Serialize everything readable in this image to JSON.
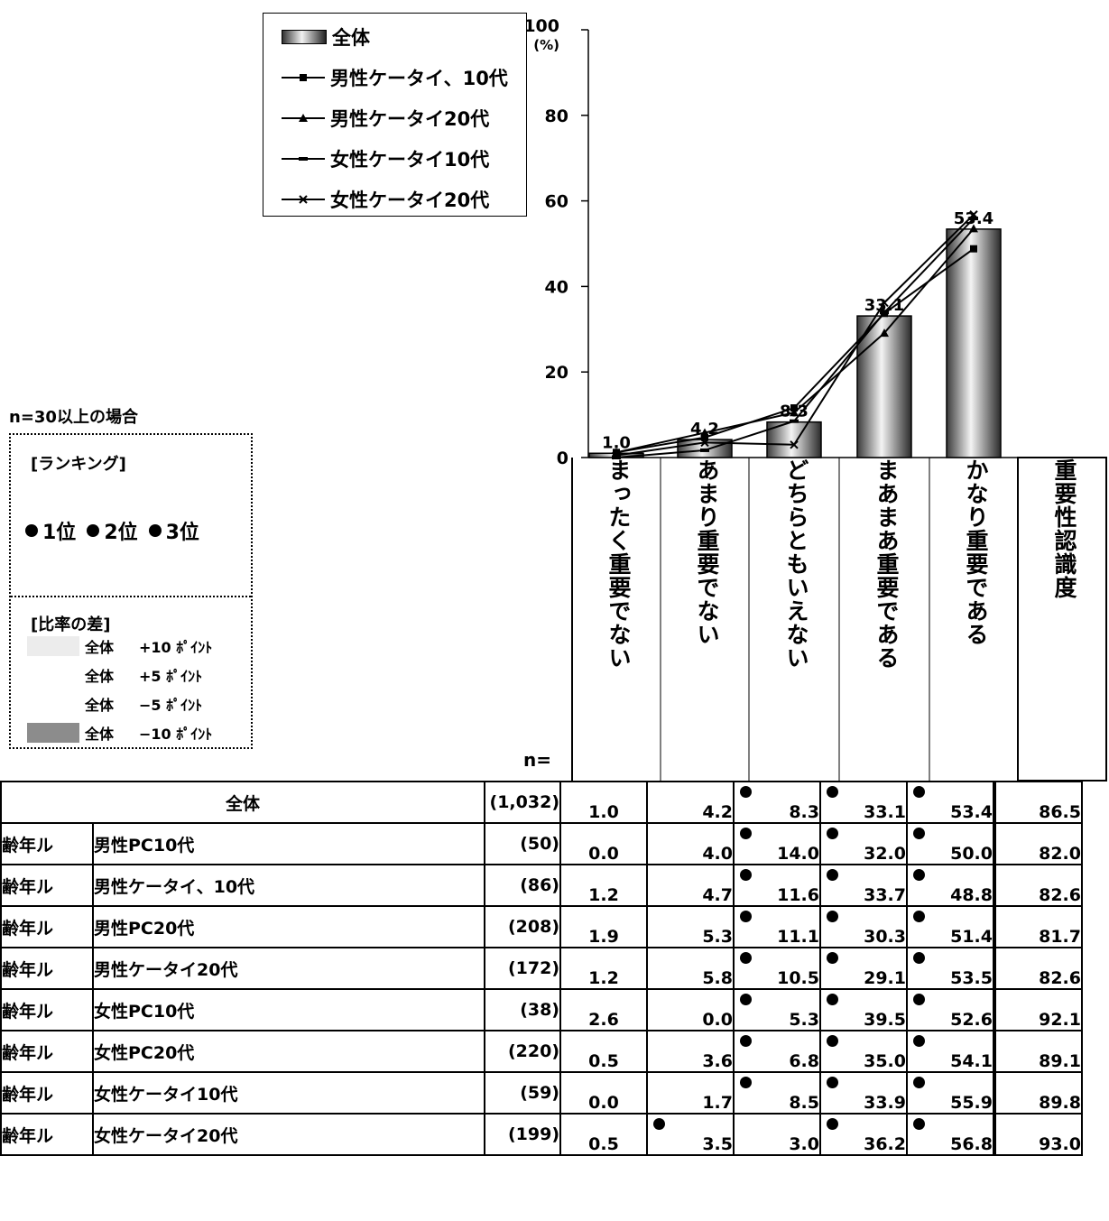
{
  "chart_data": {
    "type": "bar",
    "categories": [
      "まったく重要でない",
      "あまり重要でない",
      "どちらともいえない",
      "まあまあ重要である",
      "かなり重要である"
    ],
    "y_axis": {
      "max_label": "100",
      "unit_label": "(%)",
      "ticks": [
        "0",
        "20",
        "40",
        "60",
        "80",
        "100"
      ],
      "ylim": [
        0,
        100
      ]
    },
    "bar_series": {
      "name": "全体",
      "values": [
        1.0,
        4.2,
        8.3,
        33.1,
        53.4
      ],
      "labels": [
        "1.0",
        "4.2",
        "8.3",
        "33.1",
        "53.4"
      ]
    },
    "line_series": [
      {
        "name": "男性ケータイ、10代",
        "values": [
          1.2,
          4.7,
          11.6,
          33.7,
          48.8
        ],
        "marker": "square"
      },
      {
        "name": "男性ケータイ20代",
        "values": [
          1.2,
          5.8,
          10.5,
          29.1,
          53.5
        ],
        "marker": "triangle"
      },
      {
        "name": "女性ケータイ10代",
        "values": [
          0.0,
          1.7,
          8.5,
          33.9,
          55.9
        ],
        "marker": "dash"
      },
      {
        "name": "女性ケータイ20代",
        "values": [
          0.5,
          3.5,
          3.0,
          36.2,
          56.8
        ],
        "marker": "x"
      }
    ],
    "legend": [
      "全体",
      "男性ケータイ、10代",
      "男性ケータイ20代",
      "女性ケータイ10代",
      "女性ケータイ20代"
    ],
    "legend_placement": "top",
    "importance_header": "重要性認識度"
  },
  "key": {
    "condition": "n=30以上の場合",
    "ranking_title": "[ランキング]",
    "ranks": [
      "1位",
      "2位",
      "3位"
    ],
    "ratio_title": "[比率の差]",
    "ratio_rows": [
      {
        "label": "全体",
        "value": "+10 ﾎﾟｲﾝﾄ",
        "color": "#ececec"
      },
      {
        "label": "全体",
        "value": "+5 ﾎﾟｲﾝﾄ",
        "color": "#ffffff"
      },
      {
        "label": "全体",
        "value": "−5 ﾎﾟｲﾝﾄ",
        "color": "#ffffff"
      },
      {
        "label": "全体",
        "value": "−10 ﾎﾟｲﾝﾄ",
        "color": "#8c8c8c"
      }
    ]
  },
  "table": {
    "n_header": "n=",
    "total": {
      "label": "全体",
      "n": "(1,032)",
      "values": [
        "1.0",
        "4.2",
        "8.3",
        "33.1",
        "53.4"
      ],
      "importance": "86.5",
      "rank_cols": [
        2,
        3,
        4
      ]
    },
    "rows": [
      {
        "group": "齢年ル",
        "label": "男性PC10代",
        "n": "(50)",
        "values": [
          "0.0",
          "4.0",
          "14.0",
          "32.0",
          "50.0"
        ],
        "importance": "82.0",
        "rank_cols": [
          2,
          3,
          4
        ]
      },
      {
        "group": "齢年ル",
        "label": "男性ケータイ、10代",
        "n": "(86)",
        "values": [
          "1.2",
          "4.7",
          "11.6",
          "33.7",
          "48.8"
        ],
        "importance": "82.6",
        "rank_cols": [
          2,
          3,
          4
        ]
      },
      {
        "group": "齢年ル",
        "label": "男性PC20代",
        "n": "(208)",
        "values": [
          "1.9",
          "5.3",
          "11.1",
          "30.3",
          "51.4"
        ],
        "importance": "81.7",
        "rank_cols": [
          2,
          3,
          4
        ]
      },
      {
        "group": "齢年ル",
        "label": "男性ケータイ20代",
        "n": "(172)",
        "values": [
          "1.2",
          "5.8",
          "10.5",
          "29.1",
          "53.5"
        ],
        "importance": "82.6",
        "rank_cols": [
          2,
          3,
          4
        ]
      },
      {
        "group": "齢年ル",
        "label": "女性PC10代",
        "n": "(38)",
        "values": [
          "2.6",
          "0.0",
          "5.3",
          "39.5",
          "52.6"
        ],
        "importance": "92.1",
        "rank_cols": [
          2,
          3,
          4
        ]
      },
      {
        "group": "齢年ル",
        "label": "女性PC20代",
        "n": "(220)",
        "values": [
          "0.5",
          "3.6",
          "6.8",
          "35.0",
          "54.1"
        ],
        "importance": "89.1",
        "rank_cols": [
          2,
          3,
          4
        ]
      },
      {
        "group": "齢年ル",
        "label": "女性ケータイ10代",
        "n": "(59)",
        "values": [
          "0.0",
          "1.7",
          "8.5",
          "33.9",
          "55.9"
        ],
        "importance": "89.8",
        "rank_cols": [
          2,
          3,
          4
        ]
      },
      {
        "group": "齢年ル",
        "label": "女性ケータイ20代",
        "n": "(199)",
        "values": [
          "0.5",
          "3.5",
          "3.0",
          "36.2",
          "56.8"
        ],
        "importance": "93.0",
        "rank_cols": [
          1,
          3,
          4
        ]
      }
    ]
  }
}
